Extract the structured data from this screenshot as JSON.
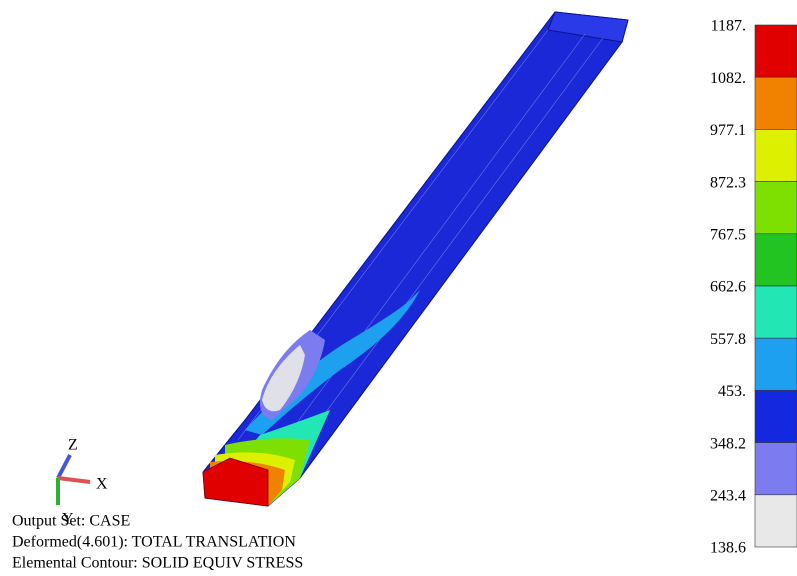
{
  "legend": {
    "labels": [
      "1187.",
      "1082.",
      "977.1",
      "872.3",
      "767.5",
      "662.6",
      "557.8",
      "453.",
      "348.2",
      "243.4",
      "138.6"
    ],
    "colors": [
      "#e00000",
      "#f08200",
      "#dcf000",
      "#7ee000",
      "#22c422",
      "#22e6b4",
      "#1ea0f0",
      "#1428e0",
      "#7c7cf0",
      "#e8e8e8"
    ]
  },
  "triad": {
    "z": "Z",
    "x": "X",
    "y": "Y"
  },
  "info": {
    "output_set": "Output Set: CASE",
    "deformed": "Deformed(4.601): TOTAL TRANSLATION",
    "contour": "Elemental Contour: SOLID EQUIV STRESS"
  }
}
